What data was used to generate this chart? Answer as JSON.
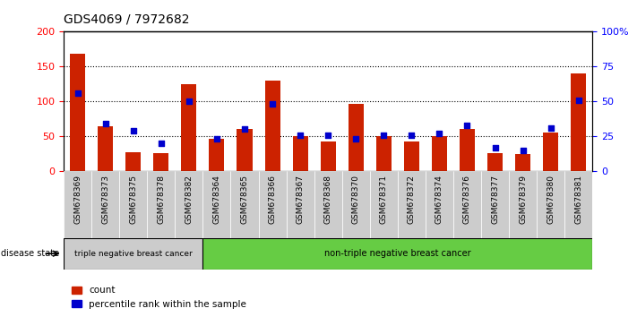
{
  "title": "GDS4069 / 7972682",
  "samples": [
    "GSM678369",
    "GSM678373",
    "GSM678375",
    "GSM678378",
    "GSM678382",
    "GSM678364",
    "GSM678365",
    "GSM678366",
    "GSM678367",
    "GSM678368",
    "GSM678370",
    "GSM678371",
    "GSM678372",
    "GSM678374",
    "GSM678376",
    "GSM678377",
    "GSM678379",
    "GSM678380",
    "GSM678381"
  ],
  "counts": [
    168,
    65,
    27,
    26,
    125,
    46,
    60,
    130,
    50,
    42,
    97,
    50,
    42,
    50,
    60,
    26,
    25,
    55,
    140
  ],
  "percentiles": [
    56,
    34,
    29,
    20,
    50,
    23,
    30,
    48,
    26,
    26,
    23,
    26,
    26,
    27,
    33,
    17,
    15,
    31,
    51
  ],
  "group1_label": "triple negative breast cancer",
  "group2_label": "non-triple negative breast cancer",
  "group1_count": 5,
  "group2_count": 14,
  "ylim_left": [
    0,
    200
  ],
  "ylim_right": [
    0,
    100
  ],
  "yticks_left": [
    0,
    50,
    100,
    150,
    200
  ],
  "yticks_right": [
    0,
    25,
    50,
    75,
    100
  ],
  "ytick_labels_right": [
    "0",
    "25",
    "50",
    "75",
    "100%"
  ],
  "bar_color": "#cc2200",
  "dot_color": "#0000cc",
  "bg_color": "#ffffff",
  "group1_bg": "#cccccc",
  "group2_bg": "#66cc44",
  "tick_bg": "#cccccc",
  "legend_count_label": "count",
  "legend_pct_label": "percentile rank within the sample",
  "grid_dotted_vals": [
    50,
    100,
    150
  ]
}
